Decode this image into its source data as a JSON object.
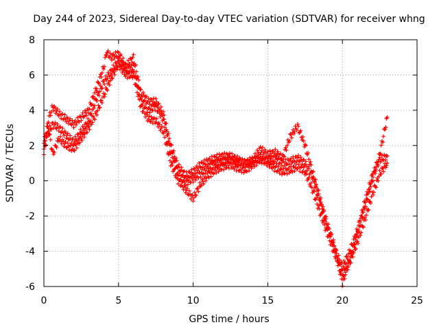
{
  "chart_data": {
    "type": "scatter",
    "title": "Day 244 of 2023, Sidereal Day-to-day VTEC variation (SDTVAR) for receiver whng",
    "xlabel": "GPS time / hours",
    "ylabel": "SDTVAR / TECUs",
    "xlim": [
      0,
      25
    ],
    "ylim": [
      -6,
      8
    ],
    "x_ticks": [
      "0",
      "5",
      "10",
      "15",
      "20",
      "25"
    ],
    "y_ticks": [
      "-6",
      "-4",
      "-2",
      "0",
      "2",
      "4",
      "6",
      "8"
    ],
    "grid": true,
    "marker": "+",
    "color": "#ff0000",
    "series": [
      {
        "x": [
          0.0,
          0.3,
          0.6,
          1.0,
          1.5,
          2.0,
          2.5,
          3.0,
          3.5,
          4.0,
          4.2,
          4.5,
          5.0,
          5.5,
          6.0,
          6.5,
          7.0,
          7.5,
          8.0,
          8.5,
          9.0,
          9.5,
          10.0,
          10.5,
          11.0,
          11.5,
          12.0,
          12.5,
          13.0,
          13.5,
          14.0,
          14.5,
          15.0,
          15.5,
          16.0,
          16.5,
          17.0,
          17.5,
          18.0,
          18.5,
          19.0,
          19.5,
          19.8,
          20.0,
          20.5,
          21.0,
          21.5,
          22.0,
          22.5,
          23.0
        ],
        "values": [
          1.8,
          3.5,
          4.2,
          3.8,
          3.5,
          3.2,
          3.6,
          4.0,
          5.2,
          6.4,
          7.3,
          7.0,
          7.2,
          6.5,
          7.0,
          5.0,
          4.5,
          4.5,
          3.8,
          2.0,
          0.8,
          0.3,
          0.5,
          0.9,
          1.1,
          1.3,
          1.4,
          1.4,
          1.2,
          1.0,
          1.2,
          1.8,
          1.5,
          1.6,
          1.3,
          2.5,
          3.1,
          2.0,
          0.5,
          -1.0,
          -2.5,
          -3.8,
          -5.0,
          -5.8,
          -4.5,
          -3.0,
          -1.5,
          0.0,
          1.5,
          3.6
        ]
      },
      {
        "x": [
          0.0,
          0.3,
          0.6,
          1.0,
          1.5,
          2.0,
          2.5,
          3.0,
          3.5,
          4.0,
          4.5,
          5.0,
          5.5,
          6.0,
          6.5,
          7.0,
          7.5,
          8.0,
          8.5,
          9.0,
          9.5,
          10.0,
          10.5,
          11.0,
          11.5,
          12.0,
          12.5,
          13.0,
          13.5,
          14.0,
          14.5,
          15.0,
          15.5,
          16.0,
          16.5,
          17.0,
          17.5,
          18.0,
          18.5,
          19.0,
          19.5,
          20.0,
          20.5,
          21.0,
          21.5,
          22.0,
          22.5,
          23.0
        ],
        "values": [
          1.6,
          2.8,
          3.2,
          3.0,
          2.6,
          2.2,
          2.8,
          3.4,
          4.6,
          5.6,
          6.2,
          6.8,
          6.3,
          6.4,
          4.6,
          4.0,
          4.2,
          3.5,
          1.6,
          0.4,
          -0.1,
          0.1,
          0.4,
          0.7,
          1.0,
          1.1,
          1.2,
          1.1,
          1.0,
          1.1,
          1.3,
          1.1,
          1.2,
          1.0,
          1.1,
          1.3,
          1.0,
          0.2,
          -1.2,
          -2.6,
          -3.9,
          -4.9,
          -4.0,
          -2.8,
          -1.2,
          0.3,
          1.2,
          1.4
        ]
      },
      {
        "x": [
          0.0,
          0.3,
          0.6,
          1.0,
          1.5,
          2.0,
          2.5,
          3.0,
          3.5,
          4.0,
          4.5,
          5.0,
          5.5,
          6.0,
          6.5,
          7.0,
          7.5,
          8.0,
          8.5,
          9.0,
          9.5,
          10.0,
          10.5,
          11.0,
          11.5,
          12.0,
          12.5,
          13.0,
          13.5,
          14.0,
          14.5,
          15.0,
          15.5,
          16.0,
          16.5,
          17.0,
          17.5,
          18.0,
          18.5,
          19.0,
          19.5,
          20.0,
          20.5,
          21.0,
          21.5,
          22.0,
          22.5,
          23.0
        ],
        "values": [
          2.3,
          3.0,
          1.5,
          2.4,
          2.0,
          1.8,
          2.4,
          3.0,
          3.8,
          4.8,
          5.8,
          6.6,
          6.0,
          6.0,
          4.2,
          3.5,
          3.4,
          2.8,
          1.0,
          0.0,
          -0.5,
          -1.0,
          -0.2,
          0.3,
          0.6,
          0.8,
          0.9,
          0.7,
          0.6,
          0.9,
          1.2,
          1.0,
          0.7,
          0.5,
          0.6,
          0.8,
          0.5,
          -0.5,
          -1.8,
          -3.0,
          -4.2,
          -5.3,
          -4.6,
          -3.5,
          -2.2,
          -0.8,
          0.4,
          1.0
        ]
      }
    ]
  }
}
